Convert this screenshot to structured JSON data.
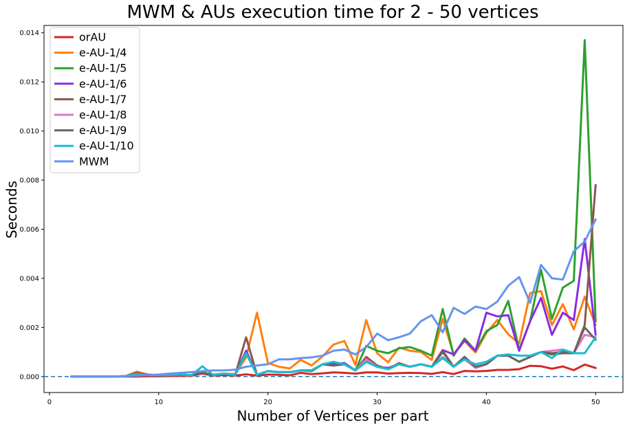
{
  "chart_data": {
    "type": "line",
    "title": "MWM & AUs execution time for 2 - 50 vertices",
    "xlabel": "Number of Vertices per part",
    "ylabel": "Seconds",
    "xlim": [
      -0.5,
      52.5
    ],
    "ylim": [
      -0.00065,
      0.0143
    ],
    "xticks": [
      0,
      10,
      20,
      30,
      40,
      50
    ],
    "xtick_labels": [
      "0",
      "10",
      "20",
      "30",
      "40",
      "50"
    ],
    "yticks": [
      0,
      0.002,
      0.004,
      0.006,
      0.008,
      0.01,
      0.012,
      0.014
    ],
    "ytick_labels": [
      "0.000",
      "0.002",
      "0.004",
      "0.006",
      "0.008",
      "0.010",
      "0.012",
      "0.014"
    ],
    "reference_line": {
      "y": 0,
      "style": "dashed",
      "color": "#1f77b4"
    },
    "grid": false,
    "legend_position": "upper-left",
    "x": [
      2,
      3,
      4,
      5,
      6,
      7,
      8,
      9,
      10,
      11,
      12,
      13,
      14,
      15,
      16,
      17,
      18,
      19,
      20,
      21,
      22,
      23,
      24,
      25,
      26,
      27,
      28,
      29,
      30,
      31,
      32,
      33,
      34,
      35,
      36,
      37,
      38,
      39,
      40,
      41,
      42,
      43,
      44,
      45,
      46,
      47,
      48,
      49,
      50
    ],
    "series": [
      {
        "name": "orAU",
        "color": "#d62728",
        "values": [
          0,
          0,
          0,
          0,
          0,
          0,
          0,
          1e-05,
          1e-05,
          2e-05,
          3e-05,
          3e-05,
          0.00012,
          4e-05,
          6e-05,
          4e-05,
          9e-05,
          4e-05,
          8e-05,
          7e-05,
          5e-05,
          0.00015,
          0.0001,
          0.00013,
          0.00017,
          0.00015,
          0.00012,
          0.00017,
          0.00017,
          0.00012,
          0.00014,
          0.00015,
          0.00014,
          0.00011,
          0.00018,
          0.0001,
          0.00023,
          0.00021,
          0.00023,
          0.00027,
          0.00027,
          0.0003,
          0.00044,
          0.00042,
          0.00032,
          0.00041,
          0.00026,
          0.00049,
          0.00035
        ]
      },
      {
        "name": "e-AU-1/4",
        "color": "#ff7f0e",
        "values": [
          0,
          0,
          0,
          0,
          0,
          2e-05,
          0.0002,
          8e-05,
          5e-05,
          6e-05,
          8e-05,
          5e-05,
          0.00015,
          8e-05,
          0.00012,
          0.0001,
          0.00078,
          0.0026,
          0.00055,
          0.0004,
          0.00033,
          0.00068,
          0.00045,
          0.00082,
          0.0013,
          0.00145,
          0.00048,
          0.0023,
          0.00095,
          0.00058,
          0.00118,
          0.00105,
          0.001,
          0.00068,
          0.00235,
          0.0009,
          0.00145,
          0.00098,
          0.00178,
          0.0023,
          0.00172,
          0.00135,
          0.0034,
          0.00348,
          0.0021,
          0.00295,
          0.00192,
          0.00325,
          0.0021
        ]
      },
      {
        "name": "e-AU-1/5",
        "color": "#2ca02c",
        "values": [
          0,
          0,
          0,
          0,
          0,
          2e-05,
          0.00012,
          6e-05,
          5e-05,
          6e-05,
          8e-05,
          5e-05,
          0.00018,
          6e-05,
          0.00012,
          6e-05,
          0.00095,
          7e-05,
          0.00022,
          0.00018,
          0.00018,
          0.00025,
          0.00022,
          0.0005,
          0.00055,
          0.0005,
          0.00025,
          0.00125,
          0.00105,
          0.00095,
          0.00115,
          0.0012,
          0.00105,
          0.00085,
          0.00275,
          0.00085,
          0.00155,
          0.00105,
          0.00185,
          0.0021,
          0.00308,
          0.00108,
          0.00225,
          0.00435,
          0.00235,
          0.00362,
          0.0039,
          0.0137,
          0.00225
        ]
      },
      {
        "name": "e-AU-1/6",
        "color": "#8a2be2",
        "values": [
          0,
          0,
          0,
          0,
          0,
          2e-05,
          0.00012,
          6e-05,
          5e-05,
          6e-05,
          8e-05,
          5e-05,
          0.00015,
          6e-05,
          0.00012,
          6e-05,
          0.00105,
          7e-05,
          0.00022,
          0.00018,
          0.00018,
          0.00025,
          0.00025,
          0.0005,
          0.0005,
          0.00055,
          0.00025,
          0.0007,
          0.0004,
          0.00035,
          0.0005,
          0.0004,
          0.0005,
          0.0004,
          0.00108,
          0.0009,
          0.00148,
          0.00105,
          0.0026,
          0.00245,
          0.0025,
          0.00105,
          0.00225,
          0.0032,
          0.0017,
          0.0026,
          0.0023,
          0.0056,
          0.0017
        ]
      },
      {
        "name": "e-AU-1/7",
        "color": "#8c564b",
        "values": [
          0,
          0,
          0,
          0,
          0,
          2e-05,
          0.00015,
          8e-05,
          5e-05,
          6e-05,
          8e-05,
          5e-05,
          0.00015,
          6e-05,
          0.00012,
          6e-05,
          0.0016,
          7e-05,
          0.00022,
          0.00018,
          0.00018,
          0.00025,
          0.00025,
          0.0005,
          0.00045,
          0.0005,
          0.00025,
          0.0008,
          0.00045,
          0.0003,
          0.00055,
          0.0004,
          0.0005,
          0.0004,
          0.00105,
          0.0004,
          0.0008,
          0.0004,
          0.0005,
          0.00085,
          0.00085,
          0.0006,
          0.0008,
          0.001,
          0.0009,
          0.00095,
          0.00095,
          0.0021,
          0.0078
        ]
      },
      {
        "name": "e-AU-1/8",
        "color": "#e377c2",
        "values": [
          0,
          0,
          0,
          0,
          0,
          2e-05,
          0.0001,
          6e-05,
          5e-05,
          6e-05,
          8e-05,
          5e-05,
          0.00015,
          6e-05,
          0.00012,
          6e-05,
          0.00095,
          7e-05,
          0.00022,
          0.00018,
          0.00018,
          0.00025,
          0.00025,
          0.0005,
          0.00045,
          0.0005,
          0.00025,
          0.0007,
          0.0004,
          0.0003,
          0.0005,
          0.0004,
          0.0005,
          0.0004,
          0.0008,
          0.0004,
          0.0007,
          0.00035,
          0.0005,
          0.00085,
          0.00085,
          0.0006,
          0.0008,
          0.001,
          0.00105,
          0.0011,
          0.00095,
          0.0017,
          0.0016
        ]
      },
      {
        "name": "e-AU-1/9",
        "color": "#666666",
        "values": [
          0,
          0,
          0,
          0,
          0,
          2e-05,
          0.0001,
          6e-05,
          5e-05,
          6e-05,
          8e-05,
          5e-05,
          0.00015,
          6e-05,
          0.00012,
          6e-05,
          0.00095,
          7e-05,
          0.00022,
          0.00018,
          0.00018,
          0.00025,
          0.00025,
          0.0005,
          0.00045,
          0.0005,
          0.00025,
          0.0006,
          0.0004,
          0.0003,
          0.0005,
          0.0004,
          0.0005,
          0.0004,
          0.001,
          0.0004,
          0.0008,
          0.0004,
          0.0005,
          0.00085,
          0.00085,
          0.0006,
          0.0008,
          0.001,
          0.00095,
          0.001,
          0.00095,
          0.002,
          0.0015
        ]
      },
      {
        "name": "e-AU-1/10",
        "color": "#17becf",
        "values": [
          0,
          0,
          0,
          0,
          0,
          2e-05,
          0.0001,
          6e-05,
          5e-05,
          6e-05,
          8e-05,
          5e-05,
          0.00042,
          6e-05,
          0.00012,
          6e-05,
          0.00095,
          7e-05,
          0.00022,
          0.00018,
          0.00018,
          0.00025,
          0.00025,
          0.0005,
          0.0006,
          0.0005,
          0.00025,
          0.0006,
          0.0004,
          0.0003,
          0.0005,
          0.0004,
          0.0005,
          0.0004,
          0.00075,
          0.0004,
          0.0007,
          0.0005,
          0.0006,
          0.00085,
          0.0009,
          0.00085,
          0.00085,
          0.001,
          0.00075,
          0.0011,
          0.00095,
          0.00095,
          0.0016
        ]
      },
      {
        "name": "MWM",
        "color": "#6495ed",
        "values": [
          0,
          0,
          0,
          0,
          0,
          2e-05,
          4e-05,
          6e-05,
          8e-05,
          0.00012,
          0.00015,
          0.00018,
          0.00022,
          0.00025,
          0.00025,
          0.00028,
          0.0004,
          0.00045,
          0.0005,
          0.0007,
          0.0007,
          0.00075,
          0.00078,
          0.00085,
          0.00105,
          0.0011,
          0.0009,
          0.0012,
          0.00175,
          0.00148,
          0.0016,
          0.00175,
          0.00225,
          0.0025,
          0.0018,
          0.0028,
          0.00255,
          0.00285,
          0.00275,
          0.00305,
          0.0037,
          0.00405,
          0.003,
          0.00455,
          0.004,
          0.00395,
          0.0051,
          0.0055,
          0.0064
        ]
      }
    ]
  }
}
